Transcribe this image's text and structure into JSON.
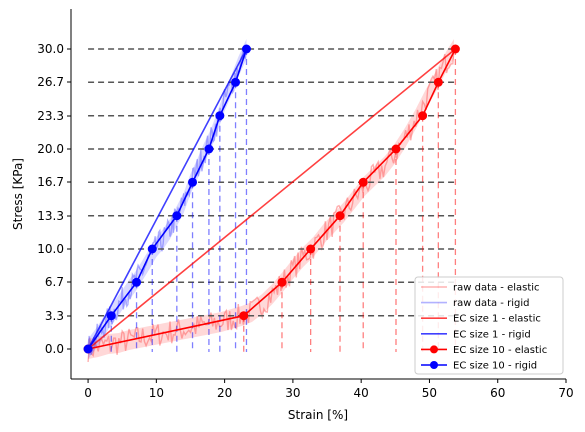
{
  "chart_data": {
    "type": "line",
    "xlabel": "Strain [%]",
    "ylabel": "Stress [KPa]",
    "xlim": [
      -2.5,
      70
    ],
    "ylim": [
      -3.0,
      34.0
    ],
    "x_ticks": [
      0,
      10,
      20,
      30,
      40,
      50,
      60,
      70
    ],
    "x_tick_labels": [
      "0",
      "10",
      "20",
      "30",
      "40",
      "50",
      "60",
      "70"
    ],
    "y_ticks": [
      0.0,
      3.3,
      6.7,
      10.0,
      13.3,
      16.7,
      20.0,
      23.3,
      26.7,
      30.0
    ],
    "y_tick_labels": [
      "0.0",
      "3.3",
      "6.7",
      "10.0",
      "13.3",
      "16.7",
      "20.0",
      "23.3",
      "26.7",
      "30.0"
    ],
    "grid": false,
    "legend_position": "lower-right",
    "colors": {
      "elastic": "#ff0000",
      "rigid": "#0000ff",
      "raw_elastic": "#ffaaaa",
      "raw_rigid": "#aaaaff",
      "threshold": "#555555"
    },
    "threshold_lines": [
      3.33,
      6.67,
      10.0,
      13.33,
      16.67,
      20.0,
      23.33,
      26.67,
      30.0
    ],
    "series": [
      {
        "name": "raw data - elastic",
        "style": "raw",
        "color": "#ff0000",
        "x": [
          0,
          1.5,
          3,
          4.5,
          6,
          7.5,
          9,
          10.5,
          12,
          13.5,
          15,
          16.5,
          18,
          19.5,
          21,
          22.5,
          24,
          25.5,
          27,
          28.5,
          30,
          31.5,
          33,
          34.5,
          36,
          37.5,
          39,
          40.5,
          42,
          43.5,
          45,
          46.5,
          48,
          49.5,
          51,
          52.5,
          53.6
        ],
        "y": [
          0.0,
          0.2,
          0.5,
          0.6,
          0.9,
          1.1,
          1.3,
          1.5,
          1.7,
          1.9,
          2.1,
          2.3,
          2.5,
          2.7,
          3.0,
          3.3,
          3.7,
          4.5,
          5.5,
          6.7,
          8.0,
          9.2,
          10.2,
          11.5,
          12.6,
          13.7,
          15.0,
          16.3,
          17.3,
          18.3,
          19.6,
          21.2,
          23.0,
          25.0,
          26.8,
          28.8,
          30.0
        ]
      },
      {
        "name": "raw data - rigid",
        "style": "raw",
        "color": "#0000ff",
        "x": [
          0,
          1,
          2,
          3,
          4,
          5,
          6,
          7,
          8,
          9,
          10,
          11,
          12,
          13,
          14,
          15,
          16,
          17,
          18,
          19,
          20,
          21,
          22,
          23.2
        ],
        "y": [
          0.0,
          0.9,
          1.9,
          3.0,
          3.9,
          4.9,
          5.9,
          6.8,
          7.9,
          9.0,
          10.2,
          11.0,
          12.0,
          13.3,
          14.6,
          16.5,
          18.0,
          19.6,
          21.0,
          22.8,
          24.8,
          26.4,
          28.2,
          30.0
        ]
      },
      {
        "name": "EC size 1 - elastic",
        "style": "line",
        "color": "#ff0000",
        "x": [
          0,
          53.8
        ],
        "y": [
          0.0,
          30.0
        ]
      },
      {
        "name": "EC size 1 - rigid",
        "style": "line",
        "color": "#0000ff",
        "x": [
          0,
          23.2
        ],
        "y": [
          0.0,
          30.0
        ]
      },
      {
        "name": "EC size 10 - elastic",
        "style": "marker",
        "color": "#ff0000",
        "x": [
          0,
          22.8,
          28.4,
          32.6,
          36.9,
          40.3,
          45.1,
          49.0,
          51.3,
          53.8
        ],
        "y": [
          0.0,
          3.33,
          6.67,
          10.0,
          13.33,
          16.67,
          20.0,
          23.33,
          26.67,
          30.0
        ]
      },
      {
        "name": "EC size 10 - rigid",
        "style": "marker",
        "color": "#0000ff",
        "x": [
          0,
          3.4,
          7.1,
          9.4,
          13.0,
          15.3,
          17.7,
          19.3,
          21.6,
          23.2
        ],
        "y": [
          0.0,
          3.33,
          6.67,
          10.0,
          13.33,
          16.67,
          20.0,
          23.33,
          26.67,
          30.0
        ]
      }
    ],
    "legend": [
      "raw data - elastic",
      "raw data - rigid",
      "EC size 1 - elastic",
      "EC size 1 - rigid",
      "EC size 10 - elastic",
      "EC size 10 - rigid"
    ]
  }
}
